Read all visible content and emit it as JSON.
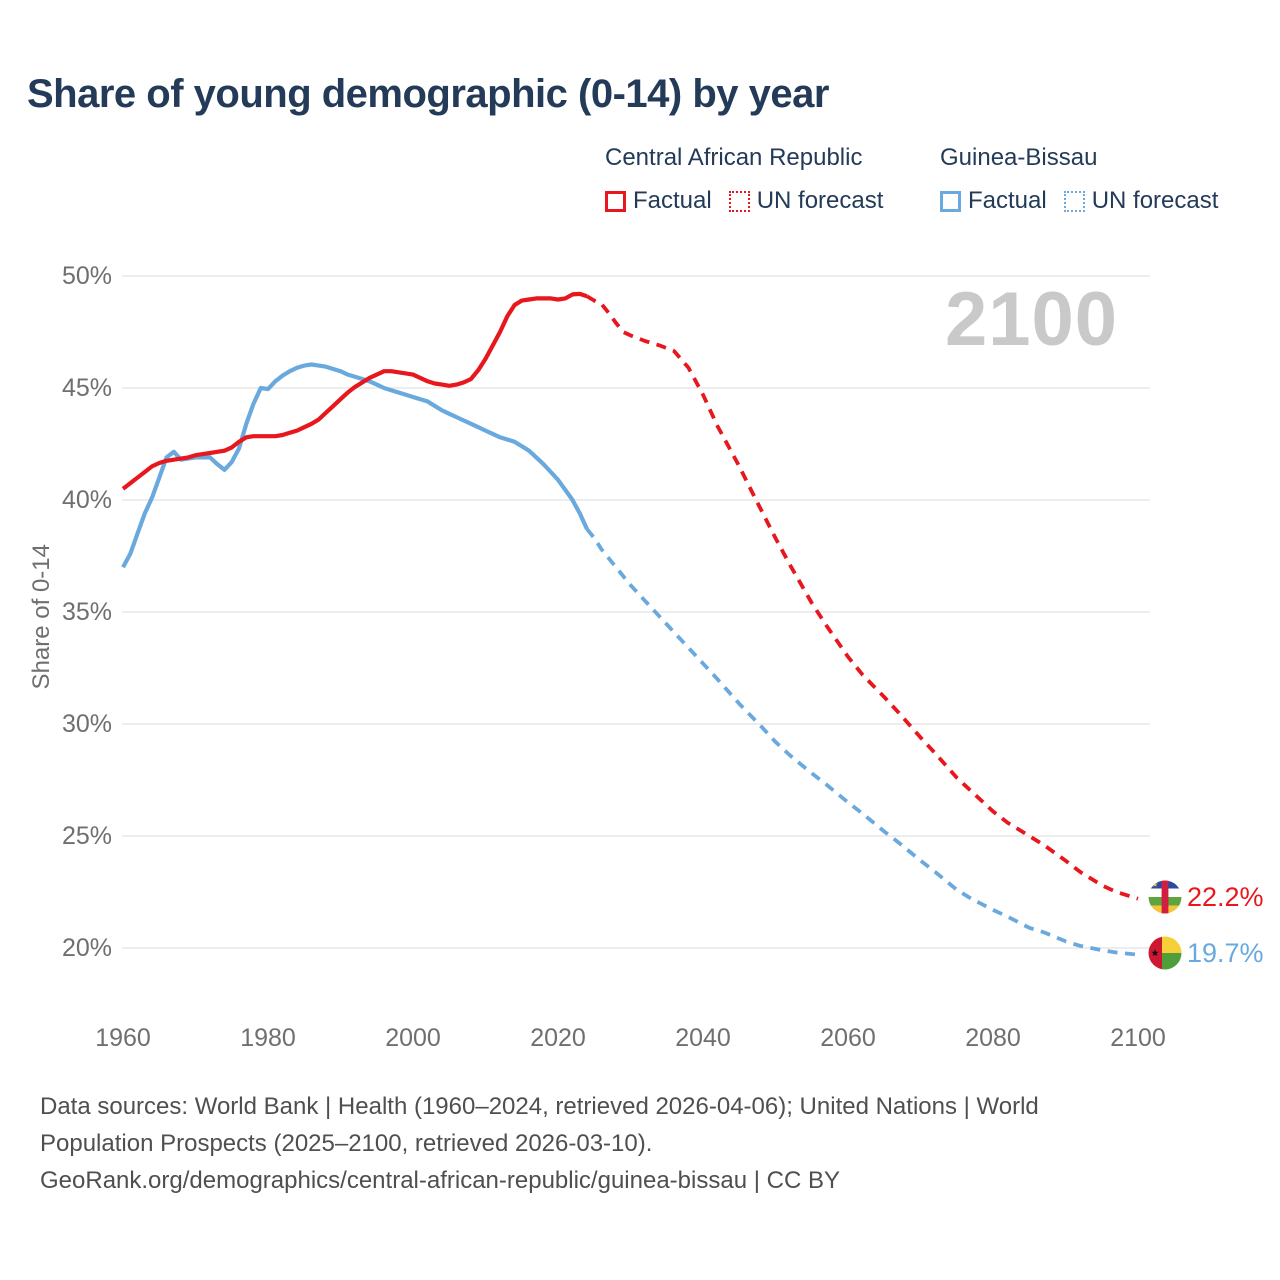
{
  "title": {
    "text": "Share of young demographic (0-14) by year",
    "color": "#233b58"
  },
  "legend": {
    "groups": [
      {
        "name": "Central African Republic",
        "color": "#e8161d",
        "items": [
          {
            "label": "Factual",
            "style": "solid"
          },
          {
            "label": "UN forecast",
            "style": "dotted"
          }
        ]
      },
      {
        "name": "Guinea-Bissau",
        "color": "#6aa9de",
        "items": [
          {
            "label": "Factual",
            "style": "solid"
          },
          {
            "label": "UN forecast",
            "style": "dotted"
          }
        ]
      }
    ]
  },
  "chart_data": {
    "type": "line",
    "title": "Share of young demographic (0-14) by year",
    "xlabel": "",
    "ylabel": "Share of 0-14",
    "watermark": "2100",
    "grid": true,
    "legend_position": "top-right",
    "x_axis": {
      "min": 1960,
      "max": 2100,
      "ticks": [
        {
          "value": 1960,
          "label": "1960"
        },
        {
          "value": 1980,
          "label": "1980"
        },
        {
          "value": 2000,
          "label": "2000"
        },
        {
          "value": 2020,
          "label": "2020"
        },
        {
          "value": 2040,
          "label": "2040"
        },
        {
          "value": 2060,
          "label": "2060"
        },
        {
          "value": 2080,
          "label": "2080"
        },
        {
          "value": 2100,
          "label": "2100"
        }
      ]
    },
    "y_axis": {
      "min": 20,
      "max": 50,
      "unit": "%",
      "ticks": [
        {
          "value": 50,
          "label": "50%"
        },
        {
          "value": 45,
          "label": "45%"
        },
        {
          "value": 40,
          "label": "40%"
        },
        {
          "value": 35,
          "label": "35%"
        },
        {
          "value": 30,
          "label": "30%"
        },
        {
          "value": 25,
          "label": "25%"
        },
        {
          "value": 20,
          "label": "20%"
        }
      ]
    },
    "series": [
      {
        "id": "gnb-factual",
        "name": "Guinea-Bissau — Factual",
        "color": "#6aa9de",
        "dash": false,
        "points": [
          [
            1960,
            37.0
          ],
          [
            1961,
            37.6
          ],
          [
            1962,
            38.5
          ],
          [
            1963,
            39.4
          ],
          [
            1964,
            40.1
          ],
          [
            1965,
            41.0
          ],
          [
            1966,
            41.9
          ],
          [
            1967,
            42.15
          ],
          [
            1968,
            41.8
          ],
          [
            1969,
            41.85
          ],
          [
            1970,
            41.9
          ],
          [
            1971,
            41.9
          ],
          [
            1972,
            41.9
          ],
          [
            1973,
            41.6
          ],
          [
            1974,
            41.35
          ],
          [
            1975,
            41.7
          ],
          [
            1976,
            42.3
          ],
          [
            1977,
            43.4
          ],
          [
            1978,
            44.3
          ],
          [
            1979,
            45.0
          ],
          [
            1980,
            44.95
          ],
          [
            1981,
            45.3
          ],
          [
            1982,
            45.55
          ],
          [
            1983,
            45.75
          ],
          [
            1984,
            45.9
          ],
          [
            1985,
            46.0
          ],
          [
            1986,
            46.05
          ],
          [
            1987,
            46.0
          ],
          [
            1988,
            45.95
          ],
          [
            1989,
            45.85
          ],
          [
            1990,
            45.75
          ],
          [
            1991,
            45.6
          ],
          [
            1992,
            45.5
          ],
          [
            1993,
            45.4
          ],
          [
            1994,
            45.3
          ],
          [
            1995,
            45.15
          ],
          [
            1996,
            45.0
          ],
          [
            1997,
            44.9
          ],
          [
            1998,
            44.8
          ],
          [
            1999,
            44.7
          ],
          [
            2000,
            44.6
          ],
          [
            2001,
            44.5
          ],
          [
            2002,
            44.4
          ],
          [
            2003,
            44.2
          ],
          [
            2004,
            44.0
          ],
          [
            2005,
            43.85
          ],
          [
            2006,
            43.7
          ],
          [
            2007,
            43.55
          ],
          [
            2008,
            43.4
          ],
          [
            2009,
            43.25
          ],
          [
            2010,
            43.1
          ],
          [
            2011,
            42.95
          ],
          [
            2012,
            42.8
          ],
          [
            2013,
            42.7
          ],
          [
            2014,
            42.6
          ],
          [
            2015,
            42.4
          ],
          [
            2016,
            42.2
          ],
          [
            2017,
            41.9
          ],
          [
            2018,
            41.6
          ],
          [
            2019,
            41.25
          ],
          [
            2020,
            40.9
          ],
          [
            2021,
            40.45
          ],
          [
            2022,
            40.0
          ],
          [
            2023,
            39.4
          ],
          [
            2024,
            38.7
          ]
        ]
      },
      {
        "id": "gnb-forecast",
        "name": "Guinea-Bissau — UN forecast",
        "color": "#6aa9de",
        "dash": true,
        "points": [
          [
            2024,
            38.7
          ],
          [
            2025,
            38.3
          ],
          [
            2026,
            37.8
          ],
          [
            2028,
            37.0
          ],
          [
            2030,
            36.2
          ],
          [
            2032,
            35.5
          ],
          [
            2034,
            34.8
          ],
          [
            2036,
            34.1
          ],
          [
            2038,
            33.4
          ],
          [
            2040,
            32.7
          ],
          [
            2042,
            32.0
          ],
          [
            2045,
            30.9
          ],
          [
            2048,
            29.9
          ],
          [
            2050,
            29.2
          ],
          [
            2052,
            28.6
          ],
          [
            2055,
            27.8
          ],
          [
            2057,
            27.3
          ],
          [
            2060,
            26.5
          ],
          [
            2062,
            26.0
          ],
          [
            2065,
            25.2
          ],
          [
            2067,
            24.7
          ],
          [
            2070,
            23.9
          ],
          [
            2072,
            23.4
          ],
          [
            2075,
            22.6
          ],
          [
            2077,
            22.2
          ],
          [
            2080,
            21.7
          ],
          [
            2082,
            21.4
          ],
          [
            2085,
            20.9
          ],
          [
            2087,
            20.7
          ],
          [
            2090,
            20.3
          ],
          [
            2092,
            20.1
          ],
          [
            2095,
            19.9
          ],
          [
            2097,
            19.8
          ],
          [
            2100,
            19.7
          ]
        ]
      },
      {
        "id": "car-factual",
        "name": "Central African Republic — Factual",
        "color": "#e8161d",
        "dash": false,
        "points": [
          [
            1960,
            40.5
          ],
          [
            1961,
            40.75
          ],
          [
            1962,
            41.0
          ],
          [
            1963,
            41.25
          ],
          [
            1964,
            41.5
          ],
          [
            1965,
            41.65
          ],
          [
            1966,
            41.75
          ],
          [
            1967,
            41.8
          ],
          [
            1968,
            41.85
          ],
          [
            1969,
            41.9
          ],
          [
            1970,
            42.0
          ],
          [
            1971,
            42.05
          ],
          [
            1972,
            42.1
          ],
          [
            1973,
            42.15
          ],
          [
            1974,
            42.2
          ],
          [
            1975,
            42.35
          ],
          [
            1976,
            42.6
          ],
          [
            1977,
            42.8
          ],
          [
            1978,
            42.85
          ],
          [
            1979,
            42.85
          ],
          [
            1980,
            42.85
          ],
          [
            1981,
            42.85
          ],
          [
            1982,
            42.9
          ],
          [
            1983,
            43.0
          ],
          [
            1984,
            43.1
          ],
          [
            1985,
            43.25
          ],
          [
            1986,
            43.4
          ],
          [
            1987,
            43.6
          ],
          [
            1988,
            43.9
          ],
          [
            1989,
            44.2
          ],
          [
            1990,
            44.5
          ],
          [
            1991,
            44.8
          ],
          [
            1992,
            45.05
          ],
          [
            1993,
            45.25
          ],
          [
            1994,
            45.45
          ],
          [
            1995,
            45.6
          ],
          [
            1996,
            45.75
          ],
          [
            1997,
            45.75
          ],
          [
            1998,
            45.7
          ],
          [
            1999,
            45.65
          ],
          [
            2000,
            45.6
          ],
          [
            2001,
            45.45
          ],
          [
            2002,
            45.3
          ],
          [
            2003,
            45.2
          ],
          [
            2004,
            45.15
          ],
          [
            2005,
            45.1
          ],
          [
            2006,
            45.15
          ],
          [
            2007,
            45.25
          ],
          [
            2008,
            45.4
          ],
          [
            2009,
            45.8
          ],
          [
            2010,
            46.3
          ],
          [
            2011,
            46.9
          ],
          [
            2012,
            47.5
          ],
          [
            2013,
            48.2
          ],
          [
            2014,
            48.7
          ],
          [
            2015,
            48.9
          ],
          [
            2016,
            48.95
          ],
          [
            2017,
            49.0
          ],
          [
            2018,
            49.0
          ],
          [
            2019,
            49.0
          ],
          [
            2020,
            48.95
          ],
          [
            2021,
            49.0
          ],
          [
            2022,
            49.18
          ],
          [
            2023,
            49.2
          ],
          [
            2024,
            49.1
          ]
        ]
      },
      {
        "id": "car-forecast",
        "name": "Central African Republic — UN forecast",
        "color": "#e8161d",
        "dash": true,
        "points": [
          [
            2024,
            49.1
          ],
          [
            2025,
            48.9
          ],
          [
            2026,
            48.75
          ],
          [
            2027,
            48.35
          ],
          [
            2028,
            47.9
          ],
          [
            2029,
            47.5
          ],
          [
            2030,
            47.35
          ],
          [
            2032,
            47.1
          ],
          [
            2034,
            46.9
          ],
          [
            2036,
            46.65
          ],
          [
            2038,
            45.9
          ],
          [
            2040,
            44.7
          ],
          [
            2042,
            43.3
          ],
          [
            2045,
            41.5
          ],
          [
            2047,
            40.2
          ],
          [
            2050,
            38.3
          ],
          [
            2052,
            37.1
          ],
          [
            2055,
            35.4
          ],
          [
            2057,
            34.4
          ],
          [
            2060,
            33.0
          ],
          [
            2062,
            32.2
          ],
          [
            2065,
            31.2
          ],
          [
            2067,
            30.5
          ],
          [
            2070,
            29.4
          ],
          [
            2072,
            28.7
          ],
          [
            2075,
            27.6
          ],
          [
            2077,
            27.0
          ],
          [
            2080,
            26.1
          ],
          [
            2082,
            25.6
          ],
          [
            2085,
            25.0
          ],
          [
            2087,
            24.6
          ],
          [
            2090,
            23.9
          ],
          [
            2092,
            23.4
          ],
          [
            2095,
            22.8
          ],
          [
            2097,
            22.5
          ],
          [
            2100,
            22.2
          ]
        ]
      }
    ],
    "end_labels": [
      {
        "series": "Central African Republic",
        "value": "22.2%",
        "color": "#e8161d",
        "flag": "central-african-republic"
      },
      {
        "series": "Guinea-Bissau",
        "value": "19.7%",
        "color": "#6aa9de",
        "flag": "guinea-bissau"
      }
    ],
    "flags": {
      "central_african_republic": {
        "blue": "#2b4ba0",
        "white": "#ffffff",
        "green": "#5ea53f",
        "yellow": "#f3c53d",
        "red": "#d21f3f",
        "star": "#f3c53d"
      },
      "guinea_bissau": {
        "red": "#ce1832",
        "yellow": "#f7cf38",
        "green": "#4f9e3c",
        "star": "#111111"
      }
    }
  },
  "footer": {
    "lines": [
      "Data sources: World Bank | Health (1960–2024, retrieved 2026-04-06); United Nations | World",
      "Population Prospects (2025–2100, retrieved 2026-03-10).",
      "GeoRank.org/demographics/central-african-republic/guinea-bissau | CC BY"
    ]
  }
}
